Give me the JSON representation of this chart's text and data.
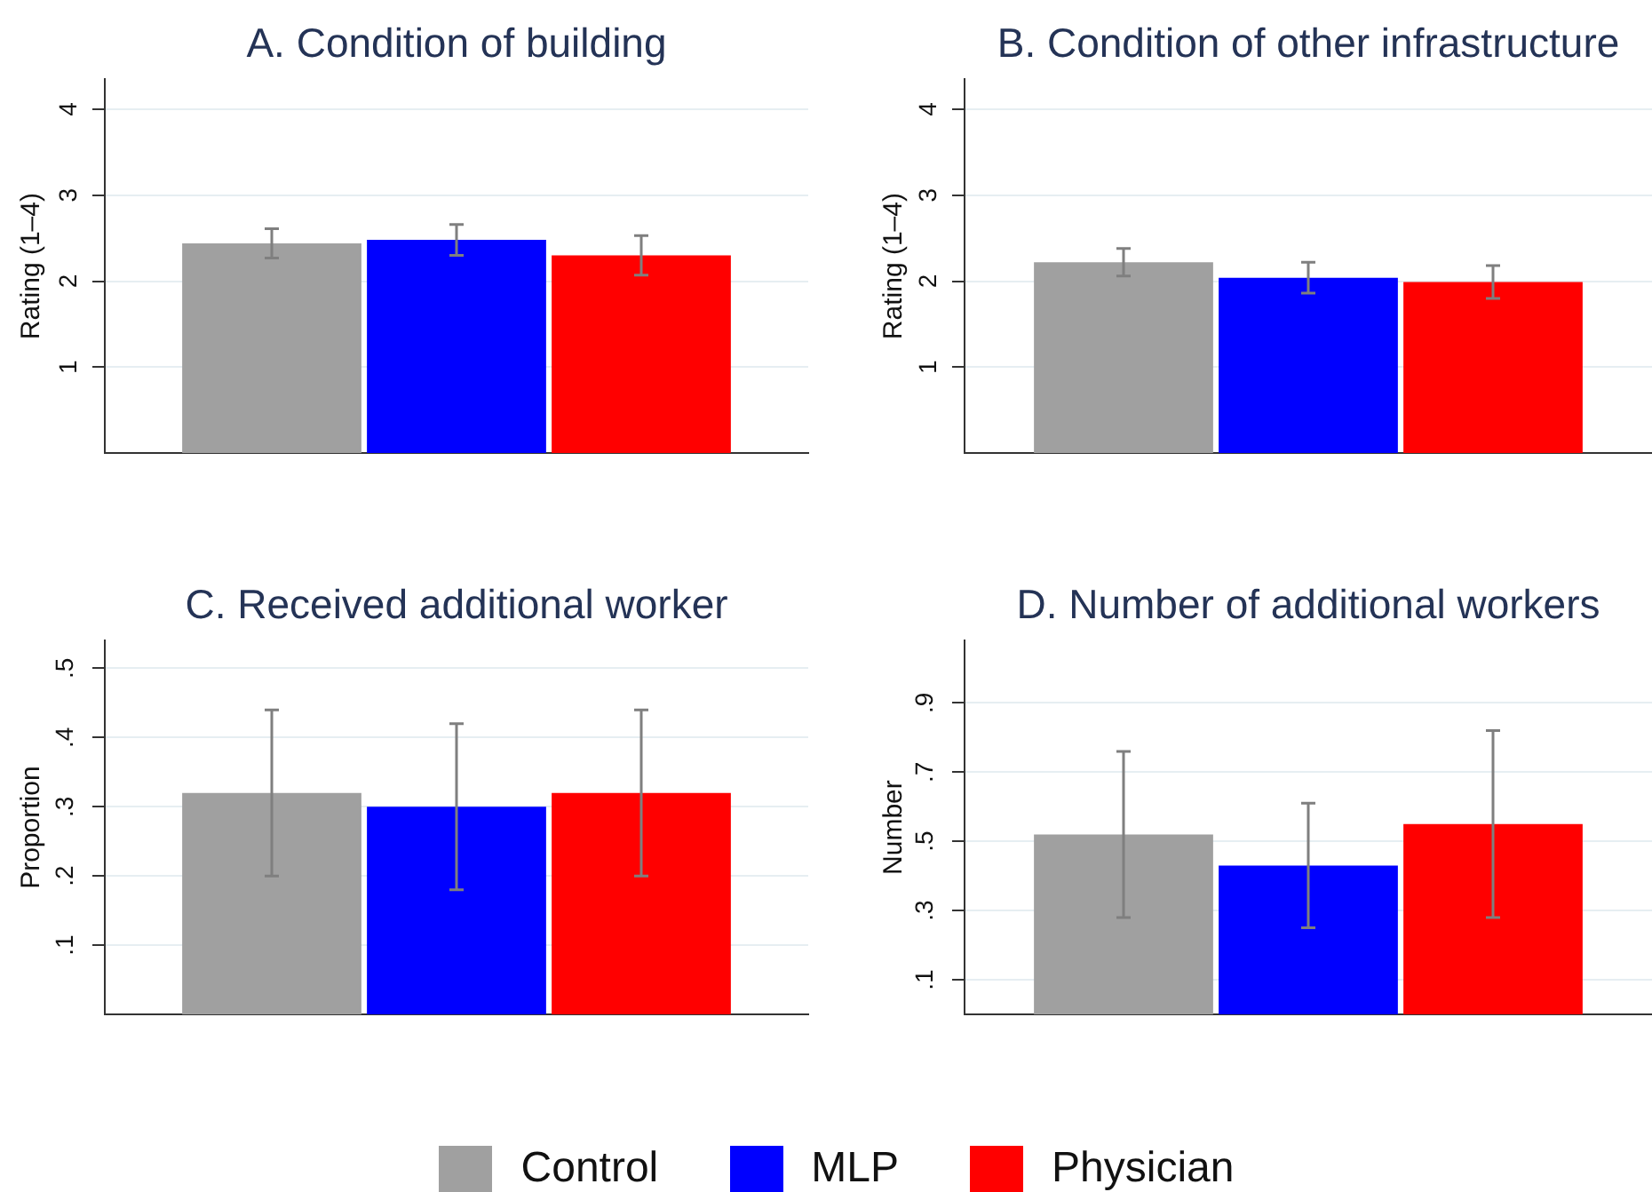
{
  "chart_data": [
    {
      "type": "bar",
      "title": "A. Condition of building",
      "ylabel": "Rating (1–4)",
      "categories": [
        null
      ],
      "series": [
        {
          "name": "Control",
          "color": "#a0a0a0",
          "values": [
            2.44
          ],
          "errors": [
            0.17
          ]
        },
        {
          "name": "MLP",
          "color": "#0000ff",
          "values": [
            2.48
          ],
          "errors": [
            0.18
          ]
        },
        {
          "name": "Physician",
          "color": "#ff0000",
          "values": [
            2.3
          ],
          "errors": [
            0.23
          ]
        }
      ],
      "ylim": [
        0,
        4.35
      ],
      "yticks": [
        1,
        2,
        3,
        4
      ],
      "grid": "y",
      "legend": "bottom",
      "tick_labels": "y"
    },
    {
      "type": "bar",
      "title": "B. Condition of other infrastructure",
      "ylabel": "Rating (1–4)",
      "categories": [
        null
      ],
      "series": [
        {
          "name": "Control",
          "color": "#a0a0a0",
          "values": [
            2.22
          ],
          "errors": [
            0.16
          ]
        },
        {
          "name": "MLP",
          "color": "#0000ff",
          "values": [
            2.04
          ],
          "errors": [
            0.18
          ]
        },
        {
          "name": "Physician",
          "color": "#ff0000",
          "values": [
            1.99
          ],
          "errors": [
            0.19
          ]
        }
      ],
      "ylim": [
        0,
        4.35
      ],
      "yticks": [
        1,
        2,
        3,
        4
      ],
      "grid": "y",
      "legend": "bottom",
      "tick_labels": "y"
    },
    {
      "type": "bar",
      "title": "C. Received additional worker",
      "ylabel": "Proportion",
      "categories": [
        null
      ],
      "series": [
        {
          "name": "Control",
          "color": "#a0a0a0",
          "values": [
            0.32
          ],
          "errors": [
            0.12
          ]
        },
        {
          "name": "MLP",
          "color": "#0000ff",
          "values": [
            0.3
          ],
          "errors": [
            0.12
          ]
        },
        {
          "name": "Physician",
          "color": "#ff0000",
          "values": [
            0.32
          ],
          "errors": [
            0.12
          ]
        }
      ],
      "ylim": [
        0,
        0.54
      ],
      "yticks": [
        {
          "value": 0.1,
          "label": ".1"
        },
        {
          "value": 0.2,
          "label": ".2"
        },
        {
          "value": 0.3,
          "label": ".3"
        },
        {
          "value": 0.4,
          "label": ".4"
        },
        {
          "value": 0.5,
          "label": ".5"
        }
      ],
      "grid": "y",
      "legend": "bottom",
      "tick_labels": "y"
    },
    {
      "type": "bar",
      "title": "D. Number of additional workers",
      "ylabel": "Number",
      "categories": [
        null
      ],
      "series": [
        {
          "name": "Control",
          "color": "#a0a0a0",
          "values": [
            0.52
          ],
          "errors": [
            0.24
          ]
        },
        {
          "name": "MLP",
          "color": "#0000ff",
          "values": [
            0.43
          ],
          "errors": [
            0.18
          ]
        },
        {
          "name": "Physician",
          "color": "#ff0000",
          "values": [
            0.55
          ],
          "errors": [
            0.27
          ]
        }
      ],
      "ylim": [
        0,
        1.08
      ],
      "yticks": [
        {
          "value": 0.1,
          "label": ".1"
        },
        {
          "value": 0.3,
          "label": ".3"
        },
        {
          "value": 0.5,
          "label": ".5"
        },
        {
          "value": 0.7,
          "label": ".7"
        },
        {
          "value": 0.9,
          "label": ".9"
        }
      ],
      "grid": "y",
      "legend": "bottom",
      "tick_labels": "y"
    }
  ]
}
